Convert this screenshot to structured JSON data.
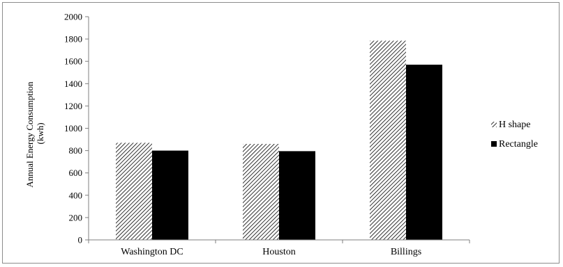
{
  "chart_data": {
    "type": "bar",
    "categories": [
      "Washington DC",
      "Houston",
      "Billings"
    ],
    "series": [
      {
        "name": "H shape",
        "values": [
          870,
          860,
          1785
        ],
        "pattern": "hatch",
        "color": "#000000"
      },
      {
        "name": "Rectangle",
        "values": [
          800,
          795,
          1570
        ],
        "pattern": "solid",
        "color": "#000000"
      }
    ],
    "ylabel_lines": [
      "Annual Energy Consumption",
      "(kwh)"
    ],
    "xlabel": "",
    "ylim": [
      0,
      2000
    ],
    "yticks": [
      0,
      200,
      400,
      600,
      800,
      1000,
      1200,
      1400,
      1600,
      1800,
      2000
    ],
    "grid": false,
    "legend_position": "right"
  }
}
